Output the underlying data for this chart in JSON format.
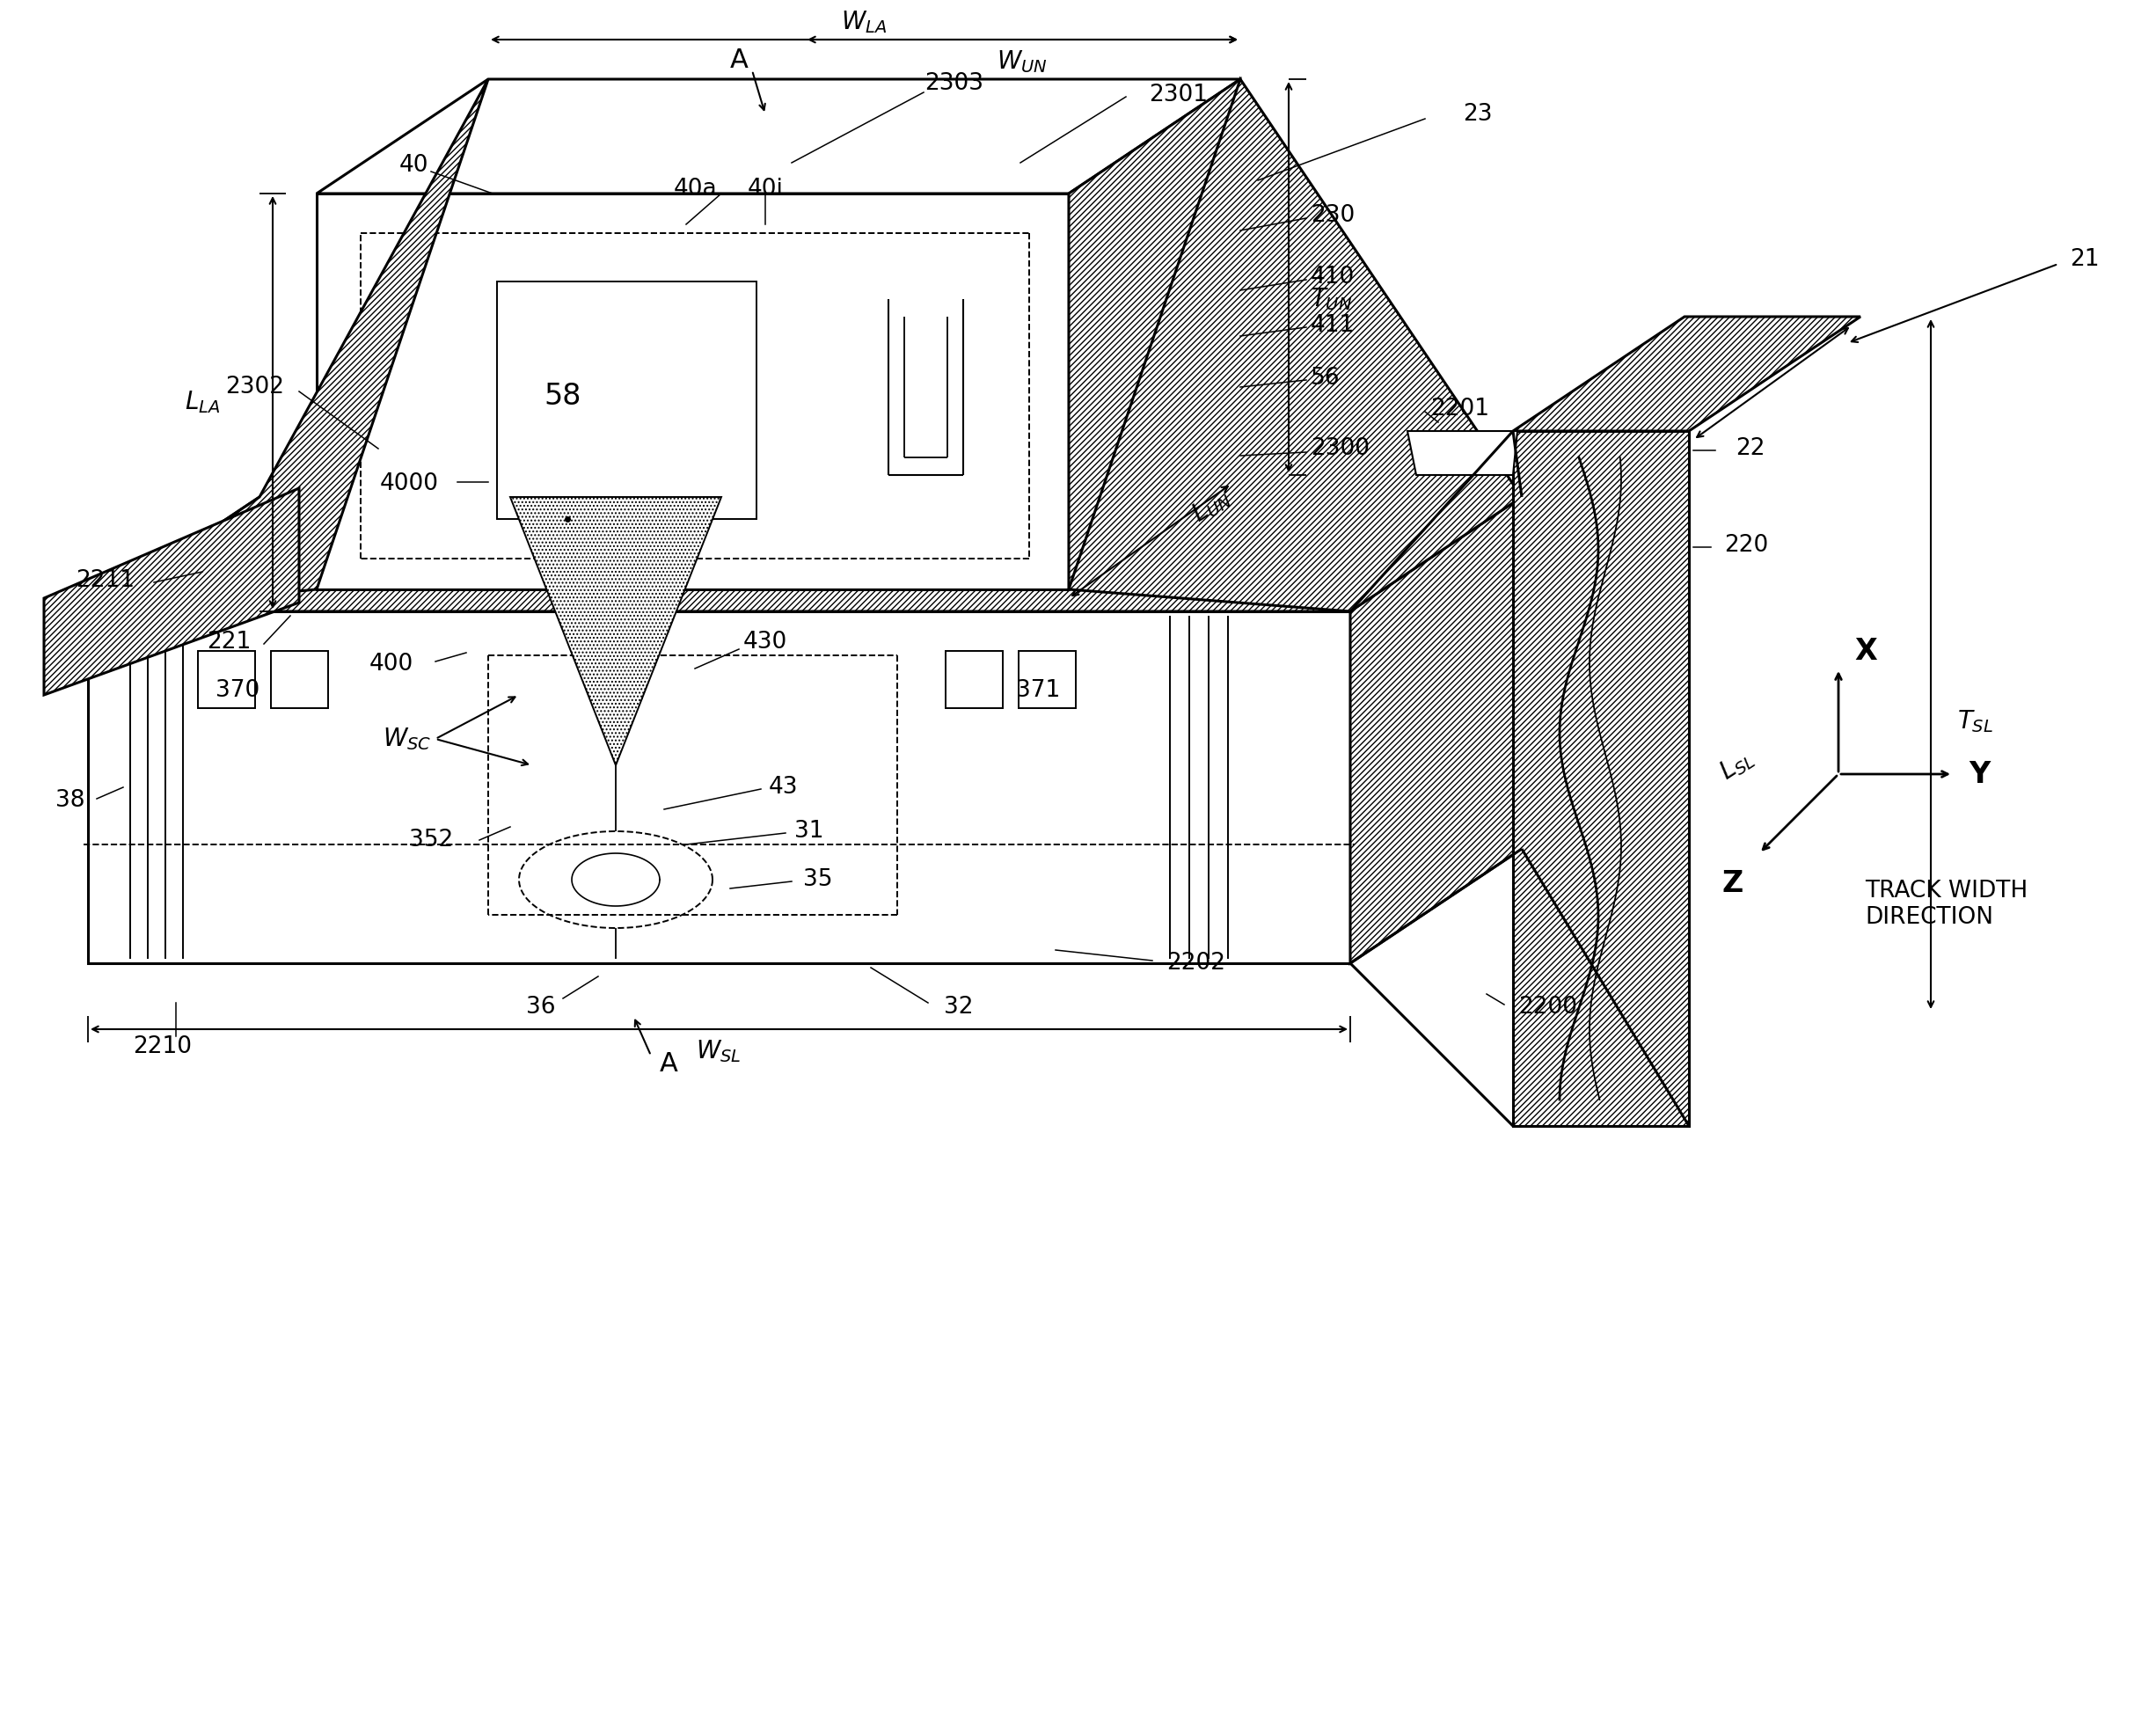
{
  "bg_color": "#ffffff",
  "lc": "#000000",
  "labels": {
    "A_top": "A",
    "A_bottom": "A",
    "23": "23",
    "21": "21",
    "22": "22",
    "2303": "2303",
    "2301": "2301",
    "2302": "2302",
    "2300": "2300",
    "230": "230",
    "410": "410",
    "411": "411",
    "56": "56",
    "40": "40",
    "40a": "40a",
    "40i": "40i",
    "400": "400",
    "4000": "4000",
    "58": "58",
    "2201": "2201",
    "220": "220",
    "221": "221",
    "2211": "2211",
    "2210": "2210",
    "38": "38",
    "370": "370",
    "371": "371",
    "352": "352",
    "430": "430",
    "43": "43",
    "31": "31",
    "35": "35",
    "36": "36",
    "32": "32",
    "2202": "2202",
    "2200": "2200",
    "W_LA": "W",
    "W_UN": "W",
    "W_SC": "W",
    "W_SL": "W",
    "L_LA": "L",
    "L_UN": "L",
    "L_SL": "L",
    "T_UN": "T",
    "T_SL": "T",
    "track_width": "TRACK WIDTH\nDIRECTION",
    "X": "X",
    "Y": "Y",
    "Z": "Z"
  }
}
